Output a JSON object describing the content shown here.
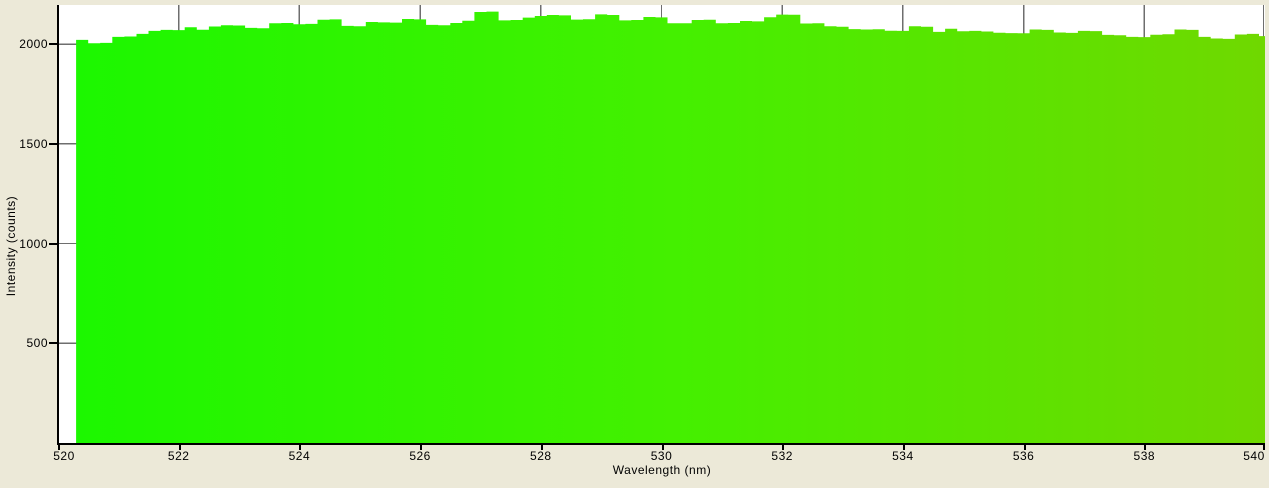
{
  "window": {
    "background_color": "#ECE9D8"
  },
  "chart_data": {
    "type": "area",
    "style": "stepped-histogram-spectrum",
    "title": "",
    "xlabel": "Wavelength (nm)",
    "ylabel": "Intensity (counts)",
    "xlim": [
      520,
      540
    ],
    "ylim": [
      0,
      2196
    ],
    "x_ticks": [
      520,
      522,
      524,
      526,
      528,
      530,
      532,
      534,
      536,
      538,
      540
    ],
    "y_ticks": [
      500,
      1000,
      1500,
      2000
    ],
    "grid": true,
    "legend": "none",
    "bin_width_nm": 0.2,
    "x": [
      520.3,
      520.5,
      520.7,
      520.9,
      521.1,
      521.3,
      521.5,
      521.7,
      521.9,
      522.1,
      522.3,
      522.5,
      522.7,
      522.9,
      523.1,
      523.3,
      523.5,
      523.7,
      523.9,
      524.1,
      524.3,
      524.5,
      524.7,
      524.9,
      525.1,
      525.3,
      525.5,
      525.7,
      525.9,
      526.1,
      526.3,
      526.5,
      526.7,
      526.9,
      527.1,
      527.3,
      527.5,
      527.7,
      527.9,
      528.1,
      528.3,
      528.5,
      528.7,
      528.9,
      529.1,
      529.3,
      529.5,
      529.7,
      529.9,
      530.1,
      530.3,
      530.5,
      530.7,
      530.9,
      531.1,
      531.3,
      531.5,
      531.7,
      531.9,
      532.1,
      532.3,
      532.5,
      532.7,
      532.9,
      533.1,
      533.3,
      533.5,
      533.7,
      533.9,
      534.1,
      534.3,
      534.5,
      534.7,
      534.9,
      535.1,
      535.3,
      535.5,
      535.7,
      535.9,
      536.1,
      536.3,
      536.5,
      536.7,
      536.9,
      537.1,
      537.3,
      537.5,
      537.7,
      537.9,
      538.1,
      538.3,
      538.5,
      538.7,
      538.9,
      539.1,
      539.3,
      539.5,
      539.7,
      539.9
    ],
    "values": [
      2021,
      2004,
      2006,
      2036,
      2038,
      2051,
      2066,
      2071,
      2070,
      2084,
      2072,
      2088,
      2094,
      2093,
      2081,
      2079,
      2104,
      2106,
      2099,
      2101,
      2122,
      2124,
      2091,
      2089,
      2111,
      2109,
      2108,
      2126,
      2124,
      2096,
      2094,
      2106,
      2117,
      2161,
      2163,
      2119,
      2121,
      2133,
      2141,
      2146,
      2144,
      2123,
      2125,
      2149,
      2146,
      2119,
      2121,
      2136,
      2134,
      2105,
      2104,
      2121,
      2122,
      2104,
      2106,
      2116,
      2114,
      2135,
      2148,
      2147,
      2103,
      2104,
      2089,
      2087,
      2075,
      2073,
      2074,
      2067,
      2066,
      2089,
      2087,
      2061,
      2077,
      2064,
      2066,
      2063,
      2057,
      2055,
      2054,
      2073,
      2071,
      2058,
      2056,
      2066,
      2065,
      2046,
      2044,
      2036,
      2035,
      2047,
      2049,
      2073,
      2071,
      2036,
      2028,
      2026,
      2048,
      2051,
      2040
    ],
    "colors": {
      "fill_gradient": [
        "#1CF700",
        "#44F000",
        "#70D800"
      ],
      "grid": "#6E6E6E",
      "axis": "#000000",
      "plot_background": "#FFFFFF",
      "page_background": "#ECE9D8",
      "text": "#000000"
    }
  }
}
